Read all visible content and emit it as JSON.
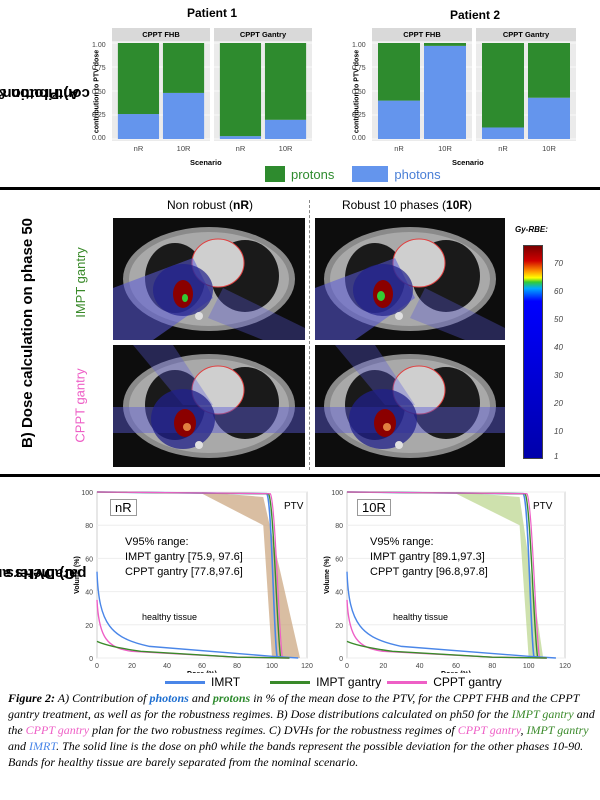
{
  "section_a": {
    "label_line1": "A) Proton & photon",
    "label_line2": "contribution",
    "patients": [
      {
        "title": "Patient 1",
        "facets": [
          "CPPT FHB",
          "CPPT Gantry"
        ]
      },
      {
        "title": "Patient 2",
        "facets": [
          "CPPT FHB",
          "CPPT Gantry"
        ]
      }
    ],
    "ylabel": "contribution to PTV dose",
    "xlabel": "Scenario",
    "yticks": [
      "1.00",
      "0.75",
      "0.50",
      "0.25",
      "0.00"
    ],
    "legend": {
      "protons": "protons",
      "photons": "photons"
    },
    "colors": {
      "protons": "#2e8b2e",
      "photons": "#6495ed"
    }
  },
  "chart_data": {
    "type": "bar",
    "stacked": true,
    "categories": [
      "nR",
      "10R"
    ],
    "ylabel": "contribution to PTV dose",
    "xlabel": "Scenario",
    "ylim": [
      0,
      1
    ],
    "panels": [
      {
        "patient": "Patient 1",
        "facet": "CPPT FHB",
        "photons": [
          0.26,
          0.48
        ],
        "protons": [
          0.74,
          0.52
        ]
      },
      {
        "patient": "Patient 1",
        "facet": "CPPT Gantry",
        "photons": [
          0.03,
          0.2
        ],
        "protons": [
          0.97,
          0.8
        ]
      },
      {
        "patient": "Patient 2",
        "facet": "CPPT FHB",
        "photons": [
          0.4,
          0.97
        ],
        "protons": [
          0.6,
          0.03
        ]
      },
      {
        "patient": "Patient 2",
        "facet": "CPPT Gantry",
        "photons": [
          0.12,
          0.43
        ],
        "protons": [
          0.88,
          0.57
        ]
      }
    ]
  },
  "section_b": {
    "label": "B) Dose calculation on phase 50",
    "col1_prefix": "Non robust (",
    "col1_bold": "nR",
    "col2_prefix": "Robust 10 phases (",
    "col2_bold": "10R",
    "suffix": ")",
    "row1": "IMPT gantry",
    "row2": "CPPT gantry",
    "colorbar": {
      "title": "Gy-RBE:",
      "ticks": [
        "70",
        "60",
        "50",
        "40",
        "30",
        "20",
        "10",
        "1"
      ]
    }
  },
  "section_c": {
    "label_line1": "C) DVHs and dose",
    "label_line2": "parameters",
    "ylabel": "Volume (%)",
    "xlabel": "Dose (%)",
    "yticks": [
      "100",
      "80",
      "60",
      "40",
      "20",
      "0"
    ],
    "xticks": [
      "0",
      "20",
      "40",
      "60",
      "80",
      "100",
      "120"
    ],
    "ptv": "PTV",
    "healthy": "healthy tissue",
    "panels": [
      {
        "tag": "nR",
        "range_title": "V95% range:",
        "impt": "IMPT gantry [75.9, 97.6]",
        "cppt": "CPPT gantry [77.8,97.6]"
      },
      {
        "tag": "10R",
        "range_title": "V95% range:",
        "impt": "IMPT gantry [89.1,97.3]",
        "cppt": "CPPT gantry [96.8,97.8]"
      }
    ],
    "legend": [
      "IMRT",
      "IMPT gantry",
      "CPPT gantry"
    ],
    "colors": {
      "imrt": "#4a86e8",
      "impt": "#3a8a2a",
      "cppt": "#ee5fc6"
    }
  },
  "caption": {
    "fig": "Figure 2:",
    "t1": " A) Contribution of ",
    "photons": "photons",
    "t2": " and ",
    "protons": "protons",
    "t3": " in % of the mean dose to the PTV, for the CPPT FHB and the CPPT gantry treatment, as well as for the robustness regimes. B) Dose distributions calculated on ph50 for the ",
    "impt1": "IMPT gantry",
    "t4": " and the ",
    "cppt1": "CPPT gantry",
    "t5": " plan for the two robustness regimes. C) DVHs for the robustness regimes of ",
    "cppt2": "CPPT gantry",
    "t6": ", ",
    "impt2": "IMPT gantry",
    "t7": " and ",
    "imrt": "IMRT",
    "t8": ". The solid line is the dose on ph0 while the bands represent the possible deviation for the other phases 10-90. Bands for healthy tissue are barely separated from the nominal scenario."
  }
}
